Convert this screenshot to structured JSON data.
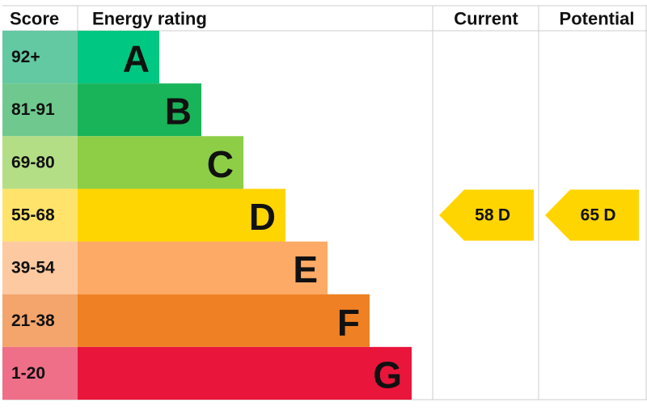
{
  "header": {
    "score": "Score",
    "rating": "Energy rating",
    "current": "Current",
    "potential": "Potential"
  },
  "bands": [
    {
      "score": "92+",
      "letter": "A",
      "color": "#00c781",
      "score_color": "#63c9a2"
    },
    {
      "score": "81-91",
      "letter": "B",
      "color": "#19b459",
      "score_color": "#6fc98e"
    },
    {
      "score": "69-80",
      "letter": "C",
      "color": "#8dce46",
      "score_color": "#b4de86"
    },
    {
      "score": "55-68",
      "letter": "D",
      "color": "#ffd500",
      "score_color": "#ffe36a"
    },
    {
      "score": "39-54",
      "letter": "E",
      "color": "#fcaa65",
      "score_color": "#fdc9a1"
    },
    {
      "score": "21-38",
      "letter": "F",
      "color": "#ef8023",
      "score_color": "#f4a56b"
    },
    {
      "score": "1-20",
      "letter": "G",
      "color": "#e9153b",
      "score_color": "#ef6f88"
    }
  ],
  "current": {
    "value": 58,
    "letter": "D"
  },
  "potential": {
    "value": 65,
    "letter": "D"
  }
}
